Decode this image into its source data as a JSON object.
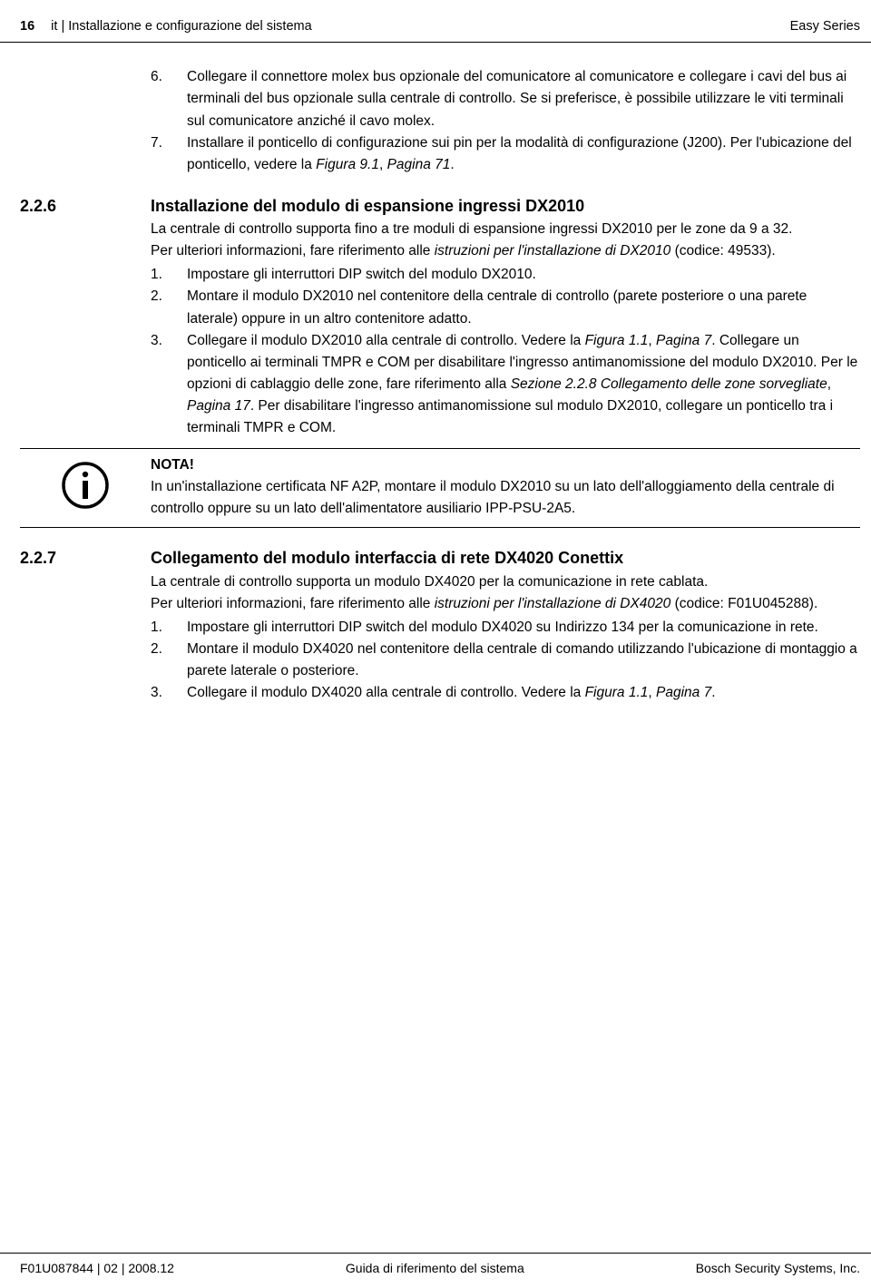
{
  "header": {
    "page_number": "16",
    "breadcrumb": "it | Installazione e configurazione del sistema",
    "product": "Easy Series"
  },
  "intro_steps": [
    {
      "n": "6.",
      "parts": [
        {
          "t": "Collegare il connettore molex bus opzionale del comunicatore al comunicatore e collegare i cavi del bus ai terminali del bus opzionale sulla centrale di controllo. Se si preferisce, è possibile utilizzare le viti terminali sul comunicatore anziché il cavo molex.",
          "i": false
        }
      ]
    },
    {
      "n": "7.",
      "parts": [
        {
          "t": "Installare il ponticello di configurazione sui pin per la modalità di configurazione (J200). Per l'ubicazione del ponticello, vedere la ",
          "i": false
        },
        {
          "t": "Figura 9.1",
          "i": true
        },
        {
          "t": ", ",
          "i": false
        },
        {
          "t": "Pagina 71",
          "i": true
        },
        {
          "t": ".",
          "i": false
        }
      ]
    }
  ],
  "s226": {
    "num": "2.2.6",
    "title": "Installazione del modulo di espansione ingressi DX2010",
    "p1": "La centrale di controllo supporta fino a tre moduli di espansione ingressi DX2010 per le zone da 9 a 32.",
    "p2_parts": [
      {
        "t": "Per ulteriori informazioni, fare riferimento alle ",
        "i": false
      },
      {
        "t": "istruzioni per l'installazione di DX2010",
        "i": true
      },
      {
        "t": " (codice: 49533).",
        "i": false
      }
    ],
    "steps": [
      {
        "n": "1.",
        "parts": [
          {
            "t": "Impostare gli interruttori DIP switch del modulo DX2010.",
            "i": false
          }
        ]
      },
      {
        "n": "2.",
        "parts": [
          {
            "t": "Montare il modulo DX2010 nel contenitore della centrale di controllo (parete posteriore o una parete laterale) oppure in un altro contenitore adatto.",
            "i": false
          }
        ]
      },
      {
        "n": "3.",
        "parts": [
          {
            "t": "Collegare il modulo DX2010 alla centrale di controllo. Vedere la ",
            "i": false
          },
          {
            "t": "Figura 1.1",
            "i": true
          },
          {
            "t": ", ",
            "i": false
          },
          {
            "t": "Pagina 7",
            "i": true
          },
          {
            "t": ". Collegare un ponticello ai terminali TMPR e COM per disabilitare l'ingresso antimanomissione del modulo DX2010. Per le opzioni di cablaggio delle zone, fare riferimento alla ",
            "i": false
          },
          {
            "t": "Sezione 2.2.8 Collegamento delle zone sorvegliate",
            "i": true
          },
          {
            "t": ", ",
            "i": false
          },
          {
            "t": "Pagina 17",
            "i": true
          },
          {
            "t": ". Per disabilitare l'ingresso antimanomissione sul modulo DX2010, collegare un ponticello tra i terminali TMPR e COM.",
            "i": false
          }
        ]
      }
    ]
  },
  "note": {
    "title": "NOTA!",
    "body": "In un'installazione certificata NF A2P, montare il modulo DX2010 su un lato dell'alloggiamento della centrale di controllo oppure su un lato dell'alimentatore ausiliario IPP-PSU-2A5."
  },
  "s227": {
    "num": "2.2.7",
    "title": "Collegamento del modulo interfaccia di rete DX4020 Conettix",
    "p1": "La centrale di controllo supporta un modulo DX4020 per la comunicazione in rete cablata.",
    "p2_parts": [
      {
        "t": "Per ulteriori informazioni, fare riferimento alle ",
        "i": false
      },
      {
        "t": "istruzioni per l'installazione di DX4020",
        "i": true
      },
      {
        "t": " (codice: F01U045288).",
        "i": false
      }
    ],
    "steps": [
      {
        "n": "1.",
        "parts": [
          {
            "t": "Impostare gli interruttori DIP switch del modulo DX4020 su Indirizzo 134 per la comunicazione in rete.",
            "i": false
          }
        ]
      },
      {
        "n": "2.",
        "parts": [
          {
            "t": "Montare il modulo DX4020 nel contenitore della centrale di comando utilizzando l'ubicazione di montaggio a parete laterale o posteriore.",
            "i": false
          }
        ]
      },
      {
        "n": "3.",
        "parts": [
          {
            "t": "Collegare il modulo DX4020 alla centrale di controllo. Vedere la ",
            "i": false
          },
          {
            "t": "Figura 1.1",
            "i": true
          },
          {
            "t": ", ",
            "i": false
          },
          {
            "t": "Pagina 7",
            "i": true
          },
          {
            "t": ".",
            "i": false
          }
        ]
      }
    ]
  },
  "footer": {
    "left": "F01U087844 | 02 | 2008.12",
    "center": "Guida di riferimento del sistema",
    "right": "Bosch Security Systems, Inc."
  }
}
